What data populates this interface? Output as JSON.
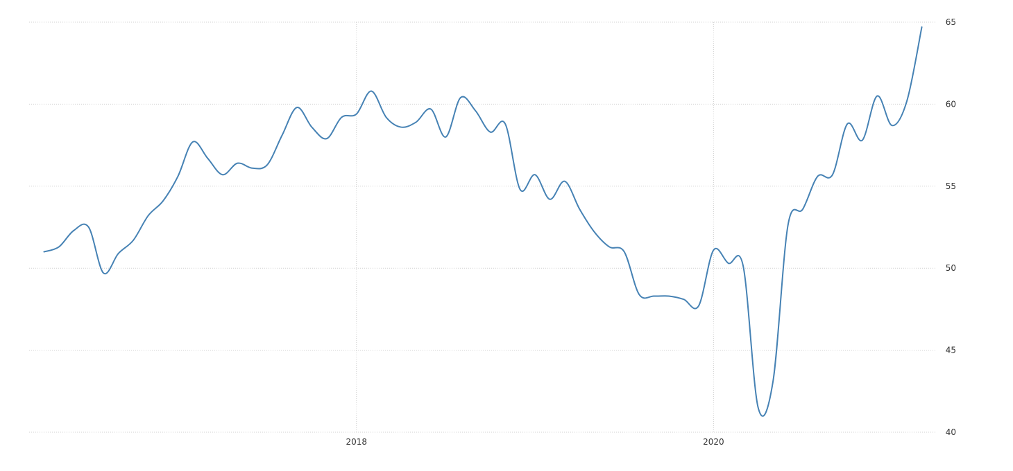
{
  "chart_data": {
    "type": "line",
    "title": "",
    "xlabel": "",
    "ylabel": "",
    "x_tick_labels": [
      "2018",
      "2020"
    ],
    "x_ticks": [
      "2018-01",
      "2020-01"
    ],
    "y_ticks": [
      40,
      45,
      50,
      55,
      60,
      65
    ],
    "ylim": [
      40,
      65
    ],
    "xlim": [
      "2016-03",
      "2021-04"
    ],
    "grid": true,
    "legend": "none",
    "colors": {
      "line": "#4682b4",
      "grid": "#d0d0d0",
      "text": "#333333"
    },
    "series": [
      {
        "x": [
          "2016-04",
          "2016-05",
          "2016-06",
          "2016-07",
          "2016-08",
          "2016-09",
          "2016-10",
          "2016-11",
          "2016-12",
          "2017-01",
          "2017-02",
          "2017-03",
          "2017-04",
          "2017-05",
          "2017-06",
          "2017-07",
          "2017-08",
          "2017-09",
          "2017-10",
          "2017-11",
          "2017-12",
          "2018-01",
          "2018-02",
          "2018-03",
          "2018-04",
          "2018-05",
          "2018-06",
          "2018-07",
          "2018-08",
          "2018-09",
          "2018-10",
          "2018-11",
          "2018-12",
          "2019-01",
          "2019-02",
          "2019-03",
          "2019-04",
          "2019-05",
          "2019-06",
          "2019-07",
          "2019-08",
          "2019-09",
          "2019-10",
          "2019-11",
          "2019-12",
          "2020-01",
          "2020-02",
          "2020-03",
          "2020-04",
          "2020-05",
          "2020-06",
          "2020-07",
          "2020-08",
          "2020-09",
          "2020-10",
          "2020-11",
          "2020-12",
          "2021-01",
          "2021-02",
          "2021-03"
        ],
        "values": [
          51.0,
          51.3,
          52.3,
          52.5,
          49.7,
          50.9,
          51.7,
          53.2,
          54.1,
          55.6,
          57.7,
          56.7,
          55.7,
          56.4,
          56.1,
          56.3,
          58.1,
          59.8,
          58.6,
          57.9,
          59.2,
          59.4,
          60.8,
          59.2,
          58.6,
          58.9,
          59.7,
          58.0,
          60.4,
          59.6,
          58.3,
          58.8,
          54.8,
          55.7,
          54.2,
          55.3,
          53.6,
          52.2,
          51.3,
          51.0,
          48.4,
          48.3,
          48.3,
          48.1,
          47.7,
          51.1,
          50.3,
          50.1,
          41.5,
          43.1,
          52.6,
          53.6,
          55.6,
          55.7,
          58.8,
          57.8,
          60.5,
          58.7,
          60.2,
          64.7
        ]
      }
    ]
  }
}
